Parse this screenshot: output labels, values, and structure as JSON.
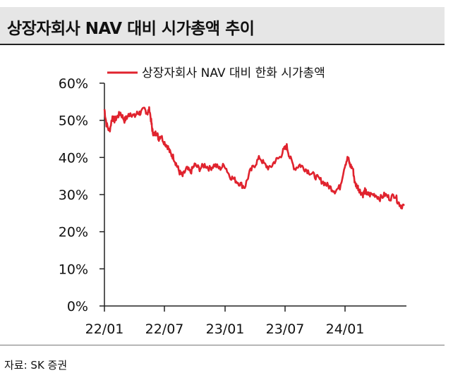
{
  "title": "상장자회사 NAV 대비 시가총액 추이",
  "source": "자료: SK 증권",
  "colors": {
    "series": "#e0232e",
    "header_bg": "#e6e6e6",
    "axis": "#222222"
  },
  "chart_data": {
    "type": "line",
    "title": "상장자회사 NAV 대비 시가총액 추이",
    "xlabel": "",
    "ylabel": "",
    "ylim": [
      0,
      60
    ],
    "y_ticks": [
      "0%",
      "10%",
      "20%",
      "30%",
      "40%",
      "50%",
      "60%"
    ],
    "x_ticks": [
      "22/01",
      "22/07",
      "23/01",
      "23/07",
      "24/01"
    ],
    "x_range": [
      0,
      30
    ],
    "legend": "top-center",
    "grid": false,
    "series": [
      {
        "name": "상장자회사 NAV 대비 한화 시가총액",
        "x": [
          0,
          0.2,
          0.5,
          0.8,
          1.0,
          1.3,
          1.6,
          2.0,
          2.3,
          2.6,
          3.0,
          3.3,
          3.6,
          4.0,
          4.3,
          4.5,
          4.7,
          4.8,
          5.0,
          5.2,
          5.4,
          5.6,
          6.0,
          6.3,
          6.6,
          6.9,
          7.2,
          7.5,
          7.8,
          8.2,
          8.6,
          9.0,
          9.5,
          10.0,
          10.5,
          11.0,
          11.5,
          12.0,
          12.5,
          13.0,
          13.5,
          14.0,
          14.5,
          15.0,
          15.5,
          16.0,
          16.5,
          17.0,
          17.5,
          17.9,
          18.2,
          18.5,
          19.0,
          19.5,
          20.0,
          20.5,
          21.0,
          21.5,
          22.0,
          22.5,
          23.0,
          23.5,
          24.0,
          24.3,
          24.5,
          24.8,
          25.0,
          25.3,
          25.5,
          25.8,
          26.0,
          26.3,
          26.5,
          27.0,
          27.5,
          28.0,
          28.5,
          29.0,
          29.3,
          29.6,
          29.9
        ],
        "values": [
          53,
          49,
          47,
          51,
          50,
          51,
          52,
          50,
          51,
          52,
          51,
          52,
          52,
          53,
          52,
          53,
          49,
          47,
          46,
          47,
          45,
          46,
          44,
          43,
          41,
          40,
          38,
          36,
          35,
          37,
          36,
          38,
          37,
          38,
          37,
          38,
          37,
          38,
          35,
          34,
          33,
          32,
          36,
          38,
          40,
          38,
          37,
          39,
          40,
          42,
          43,
          40,
          37,
          38,
          37,
          36,
          35,
          34,
          33,
          32,
          31,
          32,
          38,
          40,
          38,
          37,
          33,
          32,
          31,
          30,
          31,
          30,
          30,
          30,
          29,
          30,
          29,
          30,
          28,
          27,
          27
        ]
      }
    ]
  }
}
